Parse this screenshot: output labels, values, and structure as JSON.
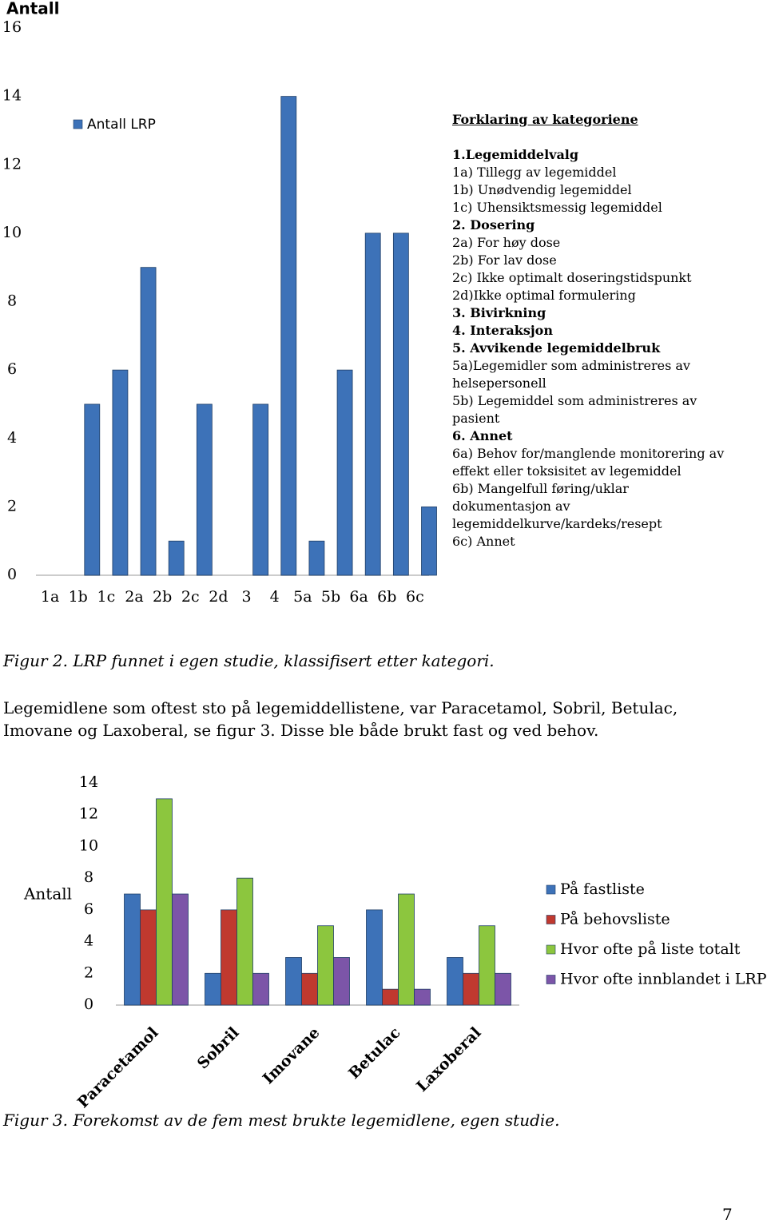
{
  "chart_data": [
    {
      "type": "bar",
      "title": "Antall",
      "categories": [
        "1a",
        "1b",
        "1c",
        "2a",
        "2b",
        "2c",
        "2d",
        "3",
        "4",
        "5a",
        "5b",
        "6a",
        "6b",
        "6c"
      ],
      "series": [
        {
          "name": "Antall LRP",
          "color": "#3d72b8",
          "values": [
            0,
            5,
            6,
            9,
            1,
            5,
            0,
            5,
            14,
            1,
            6,
            10,
            10,
            2
          ]
        }
      ],
      "ylim": [
        0,
        16
      ],
      "yticks": [
        0,
        2,
        4,
        6,
        8,
        10,
        12,
        14,
        16
      ],
      "grid": false
    },
    {
      "type": "bar",
      "y_label": "Antall",
      "categories": [
        "Paracetamol",
        "Sobril",
        "Imovane",
        "Betulac",
        "Laxoberal"
      ],
      "series": [
        {
          "name": "På fastliste",
          "color": "#3d72b8",
          "values": [
            7,
            2,
            3,
            6,
            3
          ]
        },
        {
          "name": "På behovsliste",
          "color": "#c0392f",
          "values": [
            6,
            6,
            2,
            1,
            2
          ]
        },
        {
          "name": "Hvor ofte på liste totalt",
          "color": "#8cc63e",
          "values": [
            13,
            8,
            5,
            7,
            5
          ]
        },
        {
          "name": "Hvor ofte innblandet i LRP",
          "color": "#7c55a8",
          "values": [
            7,
            2,
            3,
            1,
            2
          ]
        }
      ],
      "ylim": [
        0,
        14
      ],
      "yticks": [
        0,
        2,
        4,
        6,
        8,
        10,
        12,
        14
      ],
      "grid": false
    }
  ],
  "explanation": {
    "title": "Forklaring av kategoriene",
    "groups": [
      {
        "heading": "1.Legemiddelvalg",
        "items": [
          "1a) Tillegg av legemiddel",
          "1b) Unødvendig legemiddel",
          "1c) Uhensiktsmessig legemiddel"
        ]
      },
      {
        "heading": "2. Dosering",
        "items": [
          "2a) For høy dose",
          "2b) For lav dose",
          "2c) Ikke optimalt doseringstidspunkt",
          "2d)Ikke optimal formulering"
        ]
      },
      {
        "heading": "3. Bivirkning",
        "items": []
      },
      {
        "heading": "4. Interaksjon",
        "items": []
      },
      {
        "heading": "5. Avvikende legemiddelbruk",
        "items": [
          "5a)Legemidler som administreres av helsepersonell",
          "5b) Legemiddel som administreres av pasient"
        ]
      },
      {
        "heading": "6. Annet",
        "items": [
          "6a) Behov for/manglende monitorering av effekt eller toksisitet av legemiddel",
          "6b) Mangelfull føring/uklar dokumentasjon av legemiddelkurve/kardeks/resept",
          "6c) Annet"
        ]
      }
    ]
  },
  "caption2": "Figur 2. LRP funnet i egen studie, klassifisert etter kategori.",
  "body": "Legemidlene som oftest sto på legemiddellistene, var Paracetamol, Sobril, Betulac, Imovane og Laxoberal, se figur 3. Disse ble både brukt fast og ved behov.",
  "caption3": "Figur 3. Forekomst av de fem mest brukte legemidlene, egen studie.",
  "page_number": "7"
}
